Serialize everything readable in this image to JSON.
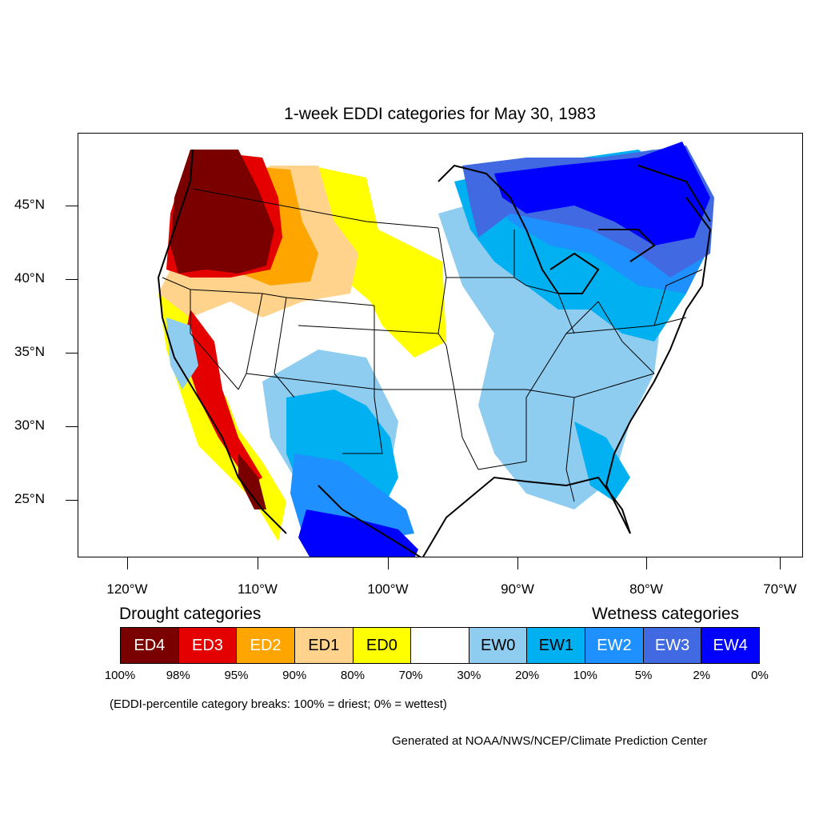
{
  "title": "1-week EDDI categories for May 30, 1983",
  "axes": {
    "lat_labels": [
      "45°N",
      "40°N",
      "35°N",
      "30°N",
      "25°N"
    ],
    "lon_labels": [
      "120°W",
      "110°W",
      "100°W",
      "90°W",
      "80°W",
      "70°W"
    ]
  },
  "legend": {
    "drought_heading": "Drought categories",
    "wetness_heading": "Wetness categories",
    "categories": [
      {
        "label": "ED4",
        "color": "#7a0000",
        "text_color": "#ffffff"
      },
      {
        "label": "ED3",
        "color": "#e50000",
        "text_color": "#ffffff"
      },
      {
        "label": "ED2",
        "color": "#ffa500",
        "text_color": "#ffffff"
      },
      {
        "label": "ED1",
        "color": "#ffd38c",
        "text_color": "#000000"
      },
      {
        "label": "ED0",
        "color": "#ffff00",
        "text_color": "#000000"
      },
      {
        "label": "",
        "color": "#ffffff",
        "text_color": "#000000"
      },
      {
        "label": "EW0",
        "color": "#8ecdf0",
        "text_color": "#000000"
      },
      {
        "label": "EW1",
        "color": "#00b0f0",
        "text_color": "#000000"
      },
      {
        "label": "EW2",
        "color": "#1e90ff",
        "text_color": "#ffffff"
      },
      {
        "label": "EW3",
        "color": "#4169e1",
        "text_color": "#ffffff"
      },
      {
        "label": "EW4",
        "color": "#0000ff",
        "text_color": "#ffffff"
      }
    ],
    "breaks": [
      "100%",
      "98%",
      "95%",
      "90%",
      "80%",
      "70%",
      "30%",
      "20%",
      "10%",
      "5%",
      "2%",
      "0%"
    ]
  },
  "note": "(EDDI-percentile category breaks: 100% = driest; 0% = wettest)",
  "credit": "Generated at NOAA/NWS/NCEP/Climate Prediction Center"
}
